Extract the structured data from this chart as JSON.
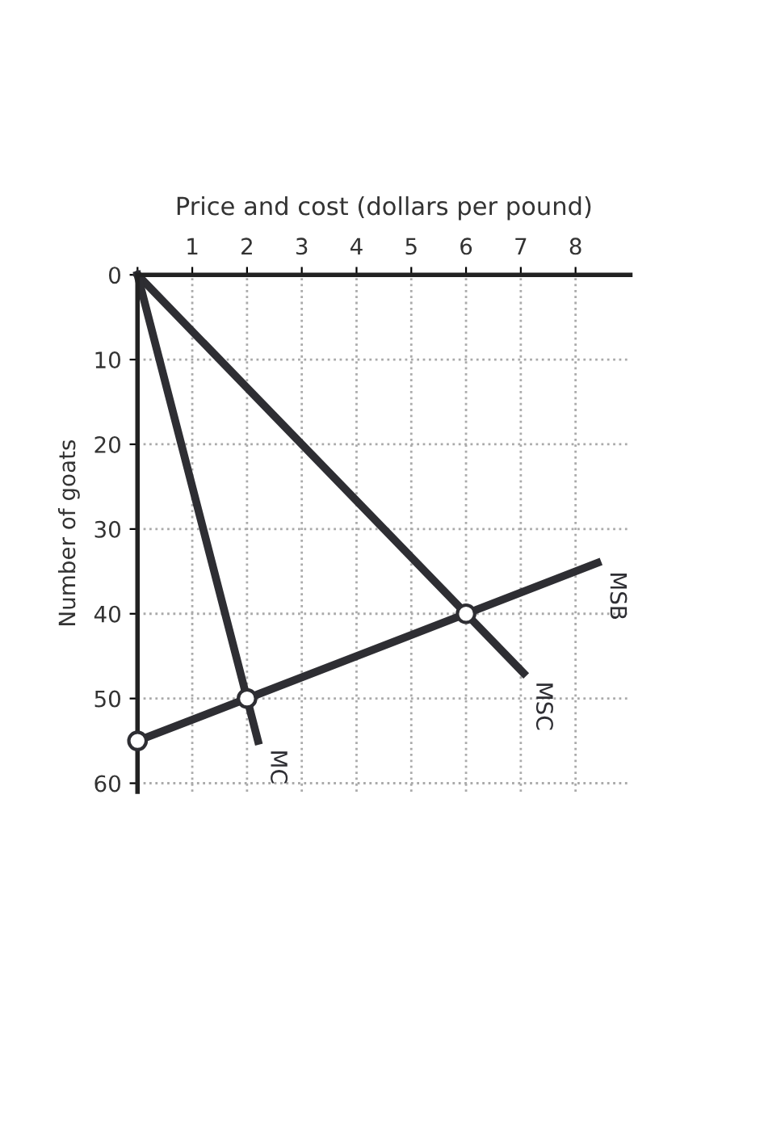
{
  "chart_data": {
    "type": "line",
    "xlabel": "Price and cost (dollars per pound)",
    "ylabel": "Number of goats",
    "xlim": [
      0,
      9
    ],
    "xticks": [
      {
        "value": 0,
        "label": null
      },
      1,
      2,
      3,
      4,
      5,
      6,
      7,
      8
    ],
    "ylim": [
      61,
      0
    ],
    "yticks": [
      0,
      10,
      20,
      30,
      40,
      50,
      60
    ],
    "grid": true,
    "marker": "none",
    "line_style": "solid",
    "series": [
      {
        "name": "MSC",
        "color": "#2e2e33",
        "x": [
          0,
          6,
          7.05
        ],
        "values": [
          0,
          40,
          47
        ]
      },
      {
        "name": "MC",
        "color": "#2e2e33",
        "x": [
          0,
          2,
          2.2
        ],
        "values": [
          0,
          50,
          55
        ]
      },
      {
        "name": "MSB",
        "color": "#2e2e33",
        "x": [
          0,
          2,
          6,
          8.4
        ],
        "values": [
          55,
          50,
          40,
          34
        ]
      },
      {
        "type": "scatter",
        "marker": "circle",
        "color": "#2e2e33",
        "x": [
          6,
          2,
          0
        ],
        "values": [
          40,
          50,
          55
        ]
      }
    ]
  }
}
